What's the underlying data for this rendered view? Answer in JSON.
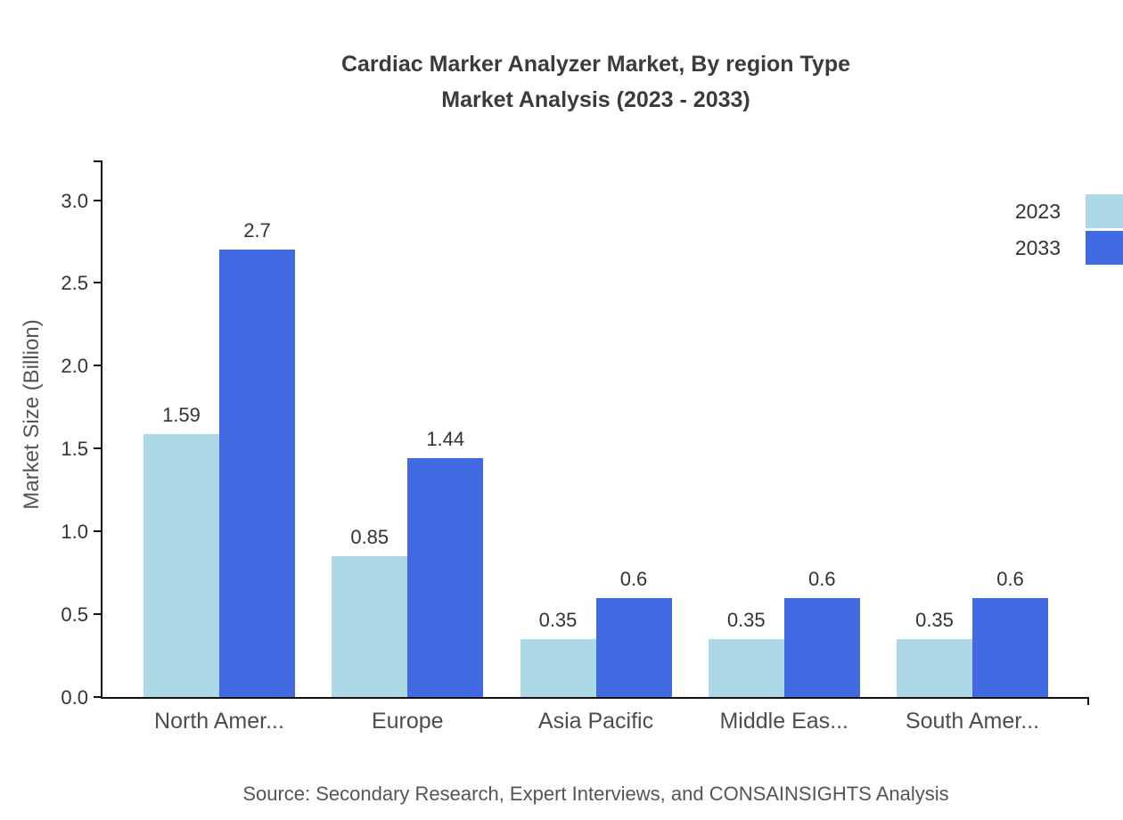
{
  "title": {
    "line1": "Cardiac Marker Analyzer Market, By region Type",
    "line2": "Market Analysis (2023 - 2033)"
  },
  "source": "Source: Secondary Research, Expert Interviews, and CONSAINSIGHTS Analysis",
  "chart_data": {
    "type": "bar",
    "title": "Cardiac Marker Analyzer Market, By region Type — Market Analysis (2023 - 2033)",
    "categories": [
      "North Amer...",
      "Europe",
      "Asia Pacific",
      "Middle Eas...",
      "South Amer..."
    ],
    "series": [
      {
        "name": "2023",
        "color": "#add8e6",
        "values": [
          1.59,
          0.85,
          0.35,
          0.35,
          0.35
        ]
      },
      {
        "name": "2033",
        "color": "#4169e1",
        "values": [
          2.7,
          1.44,
          0.6,
          0.6,
          0.6
        ]
      }
    ],
    "xlabel": "",
    "ylabel": "Market Size (Billion)",
    "yticks": [
      0.0,
      0.5,
      1.0,
      1.5,
      2.0,
      2.5,
      3.0
    ],
    "ylim": [
      0,
      3.24
    ],
    "grid": false,
    "legend_position": "top-right",
    "axis_color": "#111111",
    "value_labels_shown": true
  }
}
